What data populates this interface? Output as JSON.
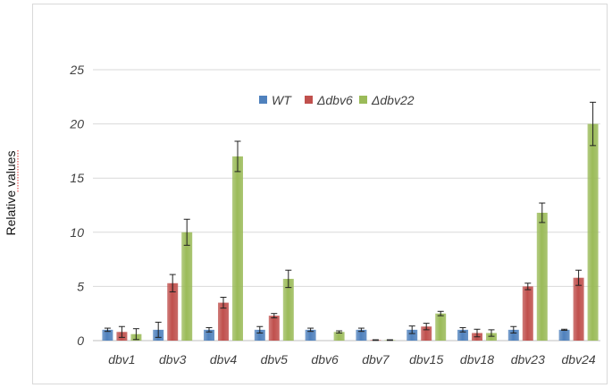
{
  "chart_data": {
    "type": "bar",
    "ylabel": "Relative values",
    "ylim": [
      0,
      25
    ],
    "yticks": [
      0,
      5,
      10,
      15,
      20,
      25
    ],
    "grid": "horizontal",
    "legend_position": "top-center",
    "categories": [
      "dbv1",
      "dbv3",
      "dbv4",
      "dbv5",
      "dbv6",
      "dbv7",
      "dbv15",
      "dbv18",
      "dbv23",
      "dbv24"
    ],
    "series": [
      {
        "name": "WT",
        "color": "#4f81bd",
        "values": [
          1.0,
          1.0,
          1.0,
          1.0,
          1.0,
          1.0,
          1.0,
          1.0,
          1.0,
          1.0
        ],
        "errors": [
          0.15,
          0.7,
          0.2,
          0.3,
          0.15,
          0.15,
          0.35,
          0.2,
          0.3,
          0.05
        ]
      },
      {
        "name": "Δdbv6",
        "color": "#c0504d",
        "values": [
          0.8,
          5.3,
          3.5,
          2.3,
          0.0,
          0.05,
          1.3,
          0.7,
          5.0,
          5.8
        ],
        "errors": [
          0.5,
          0.8,
          0.5,
          0.2,
          0.0,
          0.03,
          0.3,
          0.35,
          0.3,
          0.7
        ]
      },
      {
        "name": "Δdbv22",
        "color": "#9bbb59",
        "values": [
          0.6,
          10.0,
          17.0,
          5.7,
          0.8,
          0.05,
          2.5,
          0.7,
          11.8,
          20.0
        ],
        "errors": [
          0.5,
          1.2,
          1.4,
          0.8,
          0.1,
          0.03,
          0.2,
          0.3,
          0.9,
          2.0
        ]
      }
    ]
  }
}
